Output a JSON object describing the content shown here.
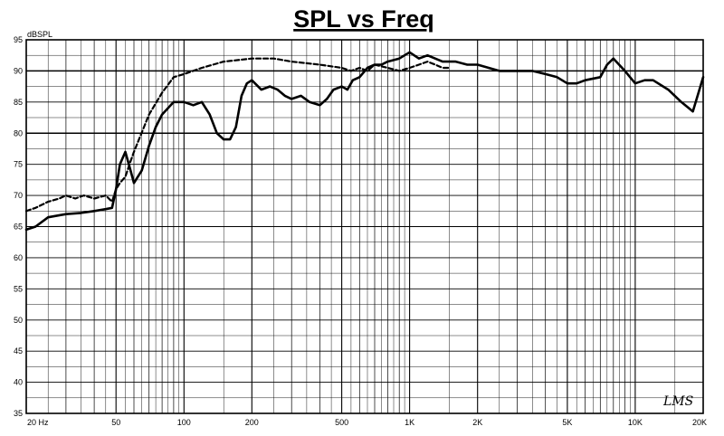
{
  "chart_data": {
    "type": "line",
    "title": "SPL vs Freq",
    "ylabel": "dBSPL",
    "xlabel": "",
    "x_scale": "log",
    "xlim": [
      20,
      20000
    ],
    "ylim": [
      35,
      95
    ],
    "grid": true,
    "x_tick_labels": [
      {
        "value": 20,
        "label": "20 Hz"
      },
      {
        "value": 50,
        "label": "50"
      },
      {
        "value": 100,
        "label": "100"
      },
      {
        "value": 200,
        "label": "200"
      },
      {
        "value": 500,
        "label": "500"
      },
      {
        "value": 1000,
        "label": "1K"
      },
      {
        "value": 2000,
        "label": "2K"
      },
      {
        "value": 5000,
        "label": "5K"
      },
      {
        "value": 10000,
        "label": "10K"
      },
      {
        "value": 20000,
        "label": "20K"
      }
    ],
    "y_tick_labels": [
      {
        "value": 35,
        "label": "35"
      },
      {
        "value": 40,
        "label": "40"
      },
      {
        "value": 45,
        "label": "45"
      },
      {
        "value": 50,
        "label": "50"
      },
      {
        "value": 55,
        "label": "55"
      },
      {
        "value": 60,
        "label": "60"
      },
      {
        "value": 65,
        "label": "65"
      },
      {
        "value": 70,
        "label": "70"
      },
      {
        "value": 75,
        "label": "75"
      },
      {
        "value": 80,
        "label": "80"
      },
      {
        "value": 85,
        "label": "85"
      },
      {
        "value": 90,
        "label": "90"
      },
      {
        "value": 95,
        "label": "95"
      }
    ],
    "series": [
      {
        "style": "solid",
        "x": [
          20,
          22,
          25,
          30,
          35,
          40,
          45,
          48,
          50,
          52,
          55,
          58,
          60,
          65,
          70,
          75,
          80,
          90,
          100,
          110,
          120,
          130,
          140,
          150,
          160,
          170,
          180,
          190,
          200,
          220,
          240,
          260,
          280,
          300,
          330,
          360,
          400,
          430,
          460,
          500,
          530,
          560,
          600,
          650,
          700,
          750,
          800,
          900,
          1000,
          1100,
          1200,
          1400,
          1600,
          1800,
          2000,
          2500,
          3000,
          3500,
          4000,
          4500,
          5000,
          5500,
          6000,
          7000,
          7500,
          8000,
          9000,
          10000,
          11000,
          12000,
          14000,
          16000,
          18000,
          20000
        ],
        "y": [
          64.5,
          65,
          66.5,
          67,
          67.2,
          67.5,
          67.8,
          68,
          71,
          75,
          77,
          74,
          72,
          74,
          78,
          81,
          83,
          85,
          85,
          84.5,
          85,
          83,
          80,
          79,
          79,
          81,
          86,
          88,
          88.5,
          87,
          87.5,
          87,
          86,
          85.5,
          86,
          85,
          84.5,
          85.5,
          87,
          87.5,
          87,
          88.5,
          89,
          90.5,
          91,
          91,
          91.5,
          92,
          93,
          92,
          92.5,
          91.5,
          91.5,
          91,
          91,
          90,
          90,
          90,
          89.5,
          89,
          88,
          88,
          88.5,
          89,
          91,
          92,
          90,
          88,
          88.5,
          88.5,
          87,
          85,
          83.5,
          89
        ]
      },
      {
        "style": "dashed",
        "x": [
          20,
          22,
          25,
          28,
          30,
          33,
          36,
          40,
          45,
          48,
          50,
          52,
          55,
          58,
          60,
          70,
          80,
          90,
          100,
          120,
          150,
          200,
          250,
          300,
          400,
          500,
          550,
          600,
          650,
          700,
          800,
          900,
          1000,
          1100,
          1200,
          1300,
          1400,
          1500
        ],
        "y": [
          67.5,
          68,
          69,
          69.5,
          70,
          69.5,
          70,
          69.5,
          70,
          69,
          71,
          72,
          73,
          75.5,
          77,
          83,
          86.5,
          89,
          89.5,
          90.5,
          91.5,
          92,
          92,
          91.5,
          91,
          90.5,
          90,
          90.5,
          90,
          91,
          90.5,
          90,
          90.5,
          91,
          91.5,
          91,
          90.5,
          90.5
        ]
      }
    ],
    "watermark": "LMS"
  }
}
